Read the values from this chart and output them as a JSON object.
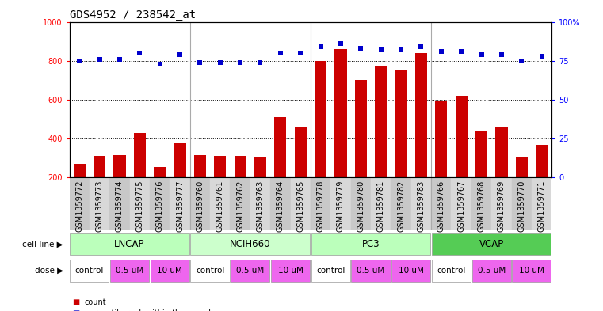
{
  "title": "GDS4952 / 238542_at",
  "samples": [
    "GSM1359772",
    "GSM1359773",
    "GSM1359774",
    "GSM1359775",
    "GSM1359776",
    "GSM1359777",
    "GSM1359760",
    "GSM1359761",
    "GSM1359762",
    "GSM1359763",
    "GSM1359764",
    "GSM1359765",
    "GSM1359778",
    "GSM1359779",
    "GSM1359780",
    "GSM1359781",
    "GSM1359782",
    "GSM1359783",
    "GSM1359766",
    "GSM1359767",
    "GSM1359768",
    "GSM1359769",
    "GSM1359770",
    "GSM1359771"
  ],
  "counts": [
    270,
    310,
    315,
    430,
    255,
    375,
    315,
    310,
    310,
    305,
    510,
    455,
    800,
    860,
    700,
    775,
    755,
    840,
    590,
    620,
    435,
    455,
    305,
    365
  ],
  "percentiles": [
    75,
    76,
    76,
    80,
    73,
    79,
    74,
    74,
    74,
    74,
    80,
    80,
    84,
    86,
    83,
    82,
    82,
    84,
    81,
    81,
    79,
    79,
    75,
    78
  ],
  "cell_lines": [
    {
      "name": "LNCAP",
      "start": 0,
      "end": 6,
      "color": "#bbffbb"
    },
    {
      "name": "NCIH660",
      "start": 6,
      "end": 12,
      "color": "#ccffcc"
    },
    {
      "name": "PC3",
      "start": 12,
      "end": 18,
      "color": "#bbffbb"
    },
    {
      "name": "VCAP",
      "start": 18,
      "end": 24,
      "color": "#55cc55"
    }
  ],
  "dose_spans": [
    {
      "label": "control",
      "start": 0,
      "end": 2,
      "color": "#ffffff"
    },
    {
      "label": "0.5 uM",
      "start": 2,
      "end": 4,
      "color": "#ee66ee"
    },
    {
      "label": "10 uM",
      "start": 4,
      "end": 6,
      "color": "#ee66ee"
    },
    {
      "label": "control",
      "start": 6,
      "end": 8,
      "color": "#ffffff"
    },
    {
      "label": "0.5 uM",
      "start": 8,
      "end": 10,
      "color": "#ee66ee"
    },
    {
      "label": "10 uM",
      "start": 10,
      "end": 12,
      "color": "#ee66ee"
    },
    {
      "label": "control",
      "start": 12,
      "end": 14,
      "color": "#ffffff"
    },
    {
      "label": "0.5 uM",
      "start": 14,
      "end": 16,
      "color": "#ee66ee"
    },
    {
      "label": "10 uM",
      "start": 16,
      "end": 18,
      "color": "#ee66ee"
    },
    {
      "label": "control",
      "start": 18,
      "end": 20,
      "color": "#ffffff"
    },
    {
      "label": "0.5 uM",
      "start": 20,
      "end": 22,
      "color": "#ee66ee"
    },
    {
      "label": "10 uM",
      "start": 22,
      "end": 24,
      "color": "#ee66ee"
    }
  ],
  "ylim_left": [
    200,
    1000
  ],
  "ylim_right": [
    0,
    100
  ],
  "yticks_left": [
    200,
    400,
    600,
    800,
    1000
  ],
  "yticks_right": [
    0,
    25,
    50,
    75,
    100
  ],
  "bar_color": "#cc0000",
  "dot_color": "#0000cc",
  "bg_color": "#ffffff",
  "title_fontsize": 10,
  "tick_fontsize": 7,
  "label_fontsize": 8.5,
  "dose_fontsize": 7.5
}
